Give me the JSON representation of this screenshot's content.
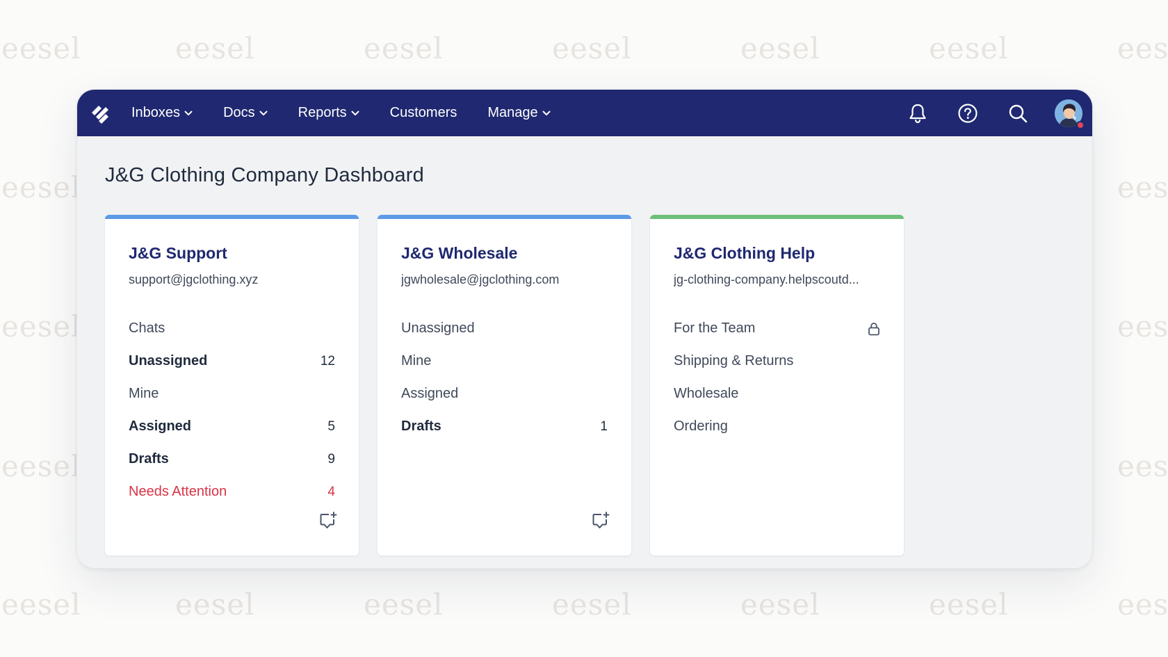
{
  "watermark": "eesel",
  "nav": {
    "items": [
      {
        "label": "Inboxes",
        "dropdown": true
      },
      {
        "label": "Docs",
        "dropdown": true
      },
      {
        "label": "Reports",
        "dropdown": true
      },
      {
        "label": "Customers",
        "dropdown": false
      },
      {
        "label": "Manage",
        "dropdown": true
      }
    ],
    "icons": [
      "bell-icon",
      "help-icon",
      "search-icon"
    ],
    "avatar_status_color": "#e0474f"
  },
  "colors": {
    "nav_bg": "#1f2870",
    "accent_blue": "#5b9ae6",
    "accent_green": "#6cc07a",
    "alert": "#d93347"
  },
  "page": {
    "title": "J&G Clothing Company Dashboard"
  },
  "cards": [
    {
      "name": "J&G Support",
      "email": "support@jgclothing.xyz",
      "folders": [
        {
          "label": "Chats",
          "count": ""
        },
        {
          "label": "Unassigned",
          "count": "12"
        },
        {
          "label": "Mine",
          "count": ""
        },
        {
          "label": "Assigned",
          "count": "5"
        },
        {
          "label": "Drafts",
          "count": "9"
        },
        {
          "label": "Needs Attention",
          "count": "4"
        }
      ]
    },
    {
      "name": "J&G Wholesale",
      "email": "jgwholesale@jgclothing.com",
      "folders": [
        {
          "label": "Unassigned",
          "count": ""
        },
        {
          "label": "Mine",
          "count": ""
        },
        {
          "label": "Assigned",
          "count": ""
        },
        {
          "label": "Drafts",
          "count": "1"
        }
      ]
    },
    {
      "name": "J&G Clothing Help",
      "email": "jg-clothing-company.helpscoutd...",
      "folders": [
        {
          "label": "For the Team",
          "icon": "lock-icon"
        },
        {
          "label": "Shipping & Returns"
        },
        {
          "label": "Wholesale"
        },
        {
          "label": "Ordering"
        }
      ]
    }
  ]
}
